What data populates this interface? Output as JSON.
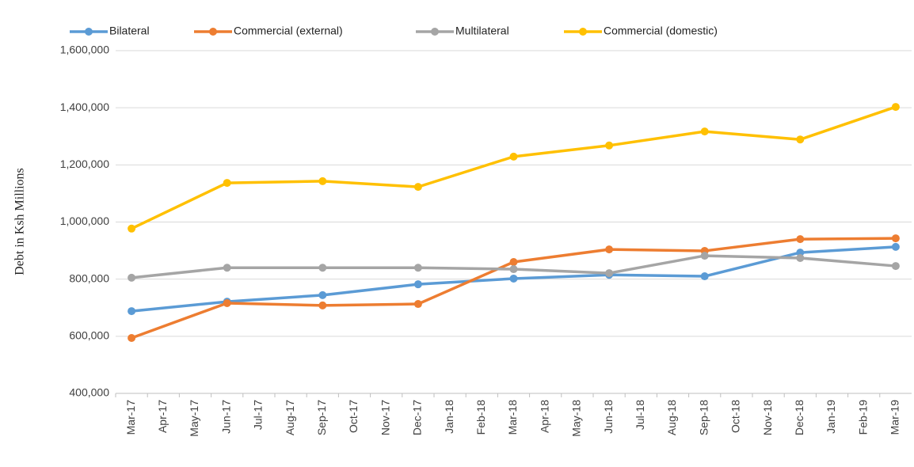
{
  "chart_data": {
    "type": "line",
    "y_label": "Debt in Ksh Millions",
    "categories": [
      "Mar-17",
      "Apr-17",
      "May-17",
      "Jun-17",
      "Jul-17",
      "Aug-17",
      "Sep-17",
      "Oct-17",
      "Nov-17",
      "Dec-17",
      "Jan-18",
      "Feb-18",
      "Mar-18",
      "Apr-18",
      "May-18",
      "Jun-18",
      "Jul-18",
      "Aug-18",
      "Sep-18",
      "Oct-18",
      "Nov-18",
      "Dec-18",
      "Jan-19",
      "Feb-19",
      "Mar-19"
    ],
    "series": [
      {
        "name": "Bilateral",
        "color": "#5b9bd5",
        "values": [
          688000,
          null,
          null,
          721000,
          null,
          null,
          744000,
          null,
          null,
          782000,
          null,
          null,
          802000,
          null,
          null,
          815000,
          null,
          null,
          810000,
          null,
          null,
          893000,
          null,
          null,
          913000
        ]
      },
      {
        "name": "Commercial (external)",
        "color": "#ed7d31",
        "values": [
          594000,
          null,
          null,
          716000,
          null,
          null,
          708000,
          null,
          null,
          713000,
          null,
          null,
          860000,
          null,
          null,
          904000,
          null,
          null,
          899000,
          null,
          null,
          940000,
          null,
          null,
          943000
        ]
      },
      {
        "name": "Multilateral",
        "color": "#a5a5a5",
        "values": [
          805000,
          null,
          null,
          840000,
          null,
          null,
          840000,
          null,
          null,
          840000,
          null,
          null,
          835000,
          null,
          null,
          821000,
          null,
          null,
          882000,
          null,
          null,
          874000,
          null,
          null,
          846000
        ]
      },
      {
        "name": "Commercial (domestic)",
        "color": "#ffc000",
        "values": [
          977000,
          null,
          null,
          1137000,
          null,
          null,
          1143000,
          null,
          null,
          1123000,
          null,
          null,
          1229000,
          null,
          null,
          1268000,
          null,
          null,
          1317000,
          null,
          null,
          1289000,
          null,
          null,
          1403000
        ]
      }
    ],
    "connect_gaps": true,
    "ylim": [
      400000,
      1600000
    ],
    "yticks": [
      {
        "value": 400000,
        "label": "400,000"
      },
      {
        "value": 600000,
        "label": "600,000"
      },
      {
        "value": 800000,
        "label": "800,000"
      },
      {
        "value": 1000000,
        "label": "1,000,000"
      },
      {
        "value": 1200000,
        "label": "1,200,000"
      },
      {
        "value": 1400000,
        "label": "1,400,000"
      },
      {
        "value": 1600000,
        "label": "1,600,000"
      }
    ],
    "grid": true,
    "legend": "top"
  }
}
